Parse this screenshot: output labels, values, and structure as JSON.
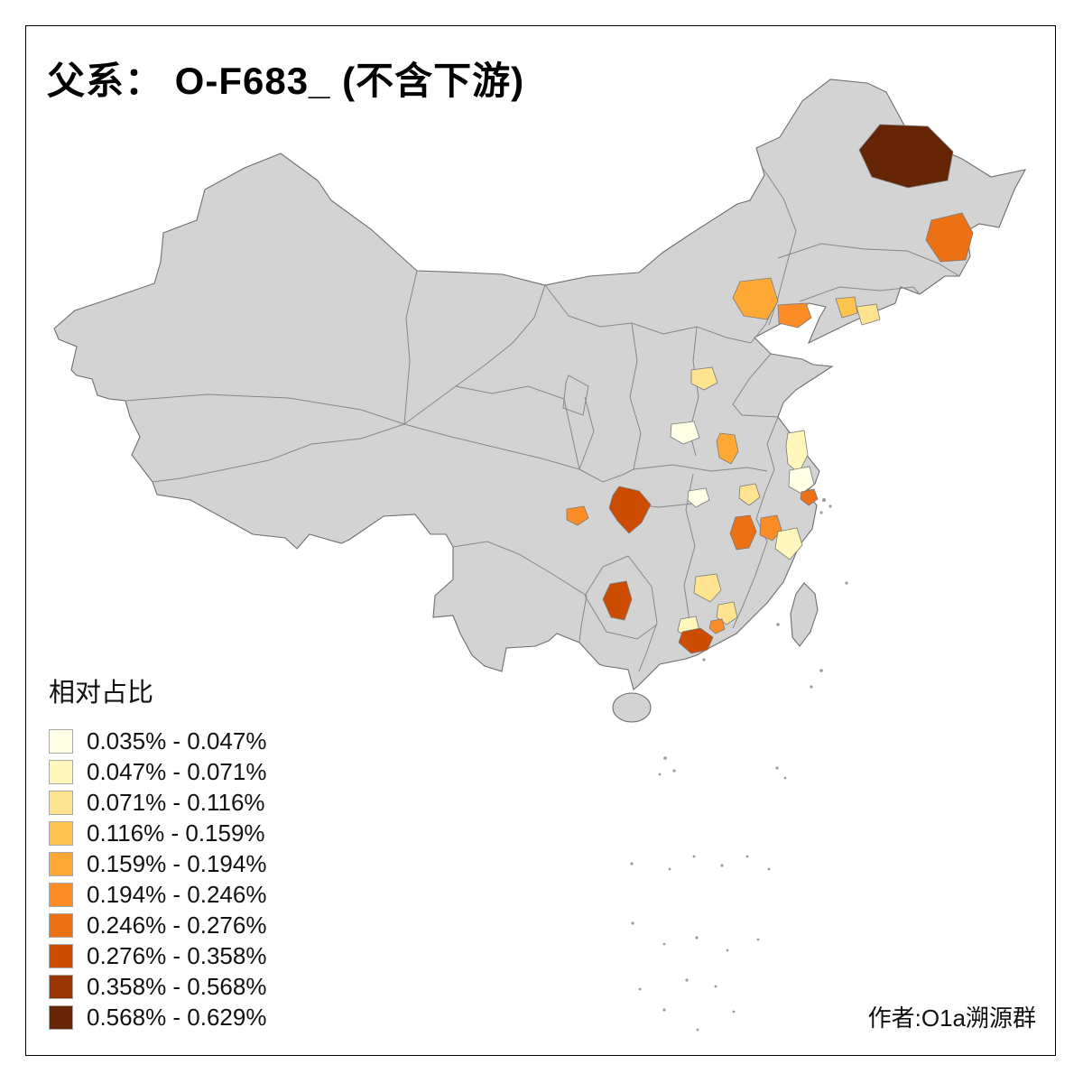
{
  "title": {
    "text": "父系： O-F683_ (不含下游)"
  },
  "legend": {
    "title": "相对占比",
    "bins": [
      {
        "label": "0.035% - 0.047%",
        "color": "#FFFFE5"
      },
      {
        "label": "0.047% - 0.071%",
        "color": "#FFF7BC"
      },
      {
        "label": "0.071% - 0.116%",
        "color": "#FEE391"
      },
      {
        "label": "0.116% - 0.159%",
        "color": "#FEC44F"
      },
      {
        "label": "0.159% - 0.194%",
        "color": "#FEA936"
      },
      {
        "label": "0.194% - 0.246%",
        "color": "#FB8C26"
      },
      {
        "label": "0.246% - 0.276%",
        "color": "#EC7014"
      },
      {
        "label": "0.276% - 0.358%",
        "color": "#CC4C02"
      },
      {
        "label": "0.358% - 0.568%",
        "color": "#993404"
      },
      {
        "label": "0.568% - 0.629%",
        "color": "#662506"
      }
    ]
  },
  "credit": {
    "text": "作者:O1a溯源群"
  },
  "map": {
    "base_fill": "#D3D3D3",
    "border_color": "#6E6E6E",
    "highlighted_regions": [
      {
        "id": "heilongjiang-north",
        "bin": 9
      },
      {
        "id": "heilongjiang-east",
        "bin": 6
      },
      {
        "id": "inner-mongolia-east",
        "bin": 4
      },
      {
        "id": "liaoning-west",
        "bin": 5
      },
      {
        "id": "liaoning-central",
        "bin": 3
      },
      {
        "id": "liaoning-south",
        "bin": 2
      },
      {
        "id": "hebei-central",
        "bin": 2
      },
      {
        "id": "shanxi-central",
        "bin": 0
      },
      {
        "id": "henan-central",
        "bin": 4
      },
      {
        "id": "jiangsu-north",
        "bin": 1
      },
      {
        "id": "jiangsu-south",
        "bin": 0
      },
      {
        "id": "shanghai-area",
        "bin": 6
      },
      {
        "id": "anhui-central",
        "bin": 2
      },
      {
        "id": "hubei-east",
        "bin": 0
      },
      {
        "id": "chongqing",
        "bin": 7
      },
      {
        "id": "sichuan-east",
        "bin": 5
      },
      {
        "id": "jiangxi-north",
        "bin": 6
      },
      {
        "id": "jiangxi-northeast",
        "bin": 5
      },
      {
        "id": "zhejiang-west",
        "bin": 1
      },
      {
        "id": "guizhou-south",
        "bin": 7
      },
      {
        "id": "jiangxi-central",
        "bin": 2
      },
      {
        "id": "fujian-west",
        "bin": 2
      },
      {
        "id": "hunan-south",
        "bin": 1
      },
      {
        "id": "guangdong-east",
        "bin": 7
      },
      {
        "id": "meizhou-area",
        "bin": 5
      }
    ]
  }
}
